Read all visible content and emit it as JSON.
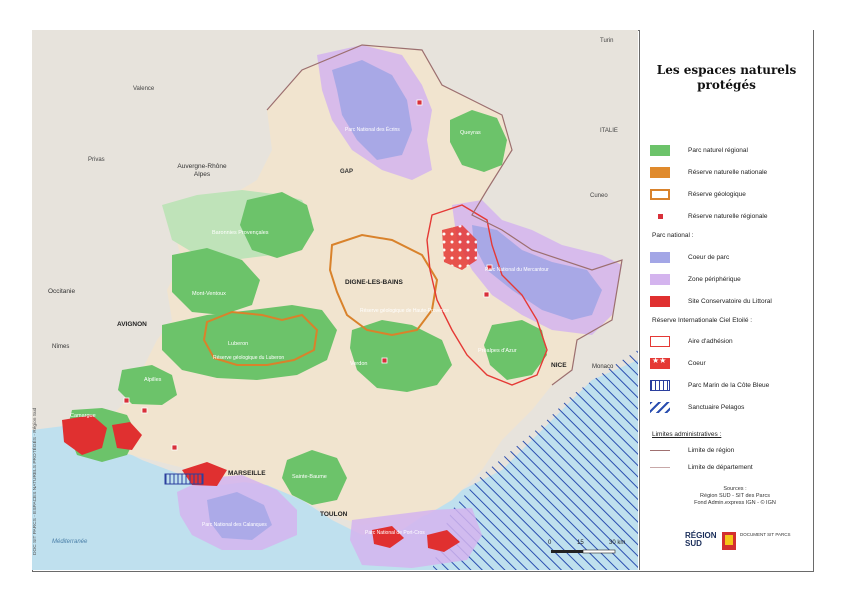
{
  "title": "Les espaces naturels protégés",
  "legend": [
    {
      "label": "Parc naturel régional",
      "type": "fill",
      "color": "#6cc36a"
    },
    {
      "label": "Réserve naturelle nationale",
      "type": "fill",
      "color": "#e08a2c"
    },
    {
      "label": "Réserve géologique",
      "type": "outline",
      "color": "#d9822b"
    },
    {
      "label": "Réserve naturelle régionale",
      "type": "point",
      "color": "#d8303a"
    }
  ],
  "legend_parc_national_heading": "Parc national :",
  "legend_parc_national": [
    {
      "label": "Coeur de parc",
      "type": "fill",
      "color": "#a3a6e6"
    },
    {
      "label": "Zone périphérique",
      "type": "fill",
      "color": "#d4b4ee"
    },
    {
      "label": "Site Conservatoire du Littoral",
      "type": "fill",
      "color": "#e03030"
    }
  ],
  "legend_reserve_ciel_heading": "Réserve Internationale Ciel Etoilé :",
  "legend_reserve_ciel": [
    {
      "label": "Aire d'adhésion",
      "type": "outline",
      "color": "#e53935"
    },
    {
      "label": "Coeur",
      "type": "stars",
      "color": "#e53935"
    },
    {
      "label": "Parc Marin de la Côte Bleue",
      "type": "hatchv",
      "color": "#2b3f9e"
    },
    {
      "label": "Sanctuaire Pelagos",
      "type": "hatchd",
      "color": "#2b3f9e"
    }
  ],
  "legend_limits_heading": "Limites administratives :",
  "legend_limits": [
    {
      "label": "Limite de région"
    },
    {
      "label": "Limite de département"
    }
  ],
  "sources": [
    "Sources :",
    "Région SUD - SIT des Parcs",
    "Fond Admin.express IGN - © IGN"
  ],
  "logos": {
    "region_line1": "RÉGION",
    "region_line2": "SUD",
    "dreal": "DOCUMENT SIT PARCS"
  },
  "scale": {
    "ticks": [
      "0",
      "15",
      "30 km"
    ]
  },
  "credit": "DOC SIT PARCS - ESPACES NATURELS PROTÉGÉS - Région Sud",
  "map": {
    "cities": [
      {
        "name": "Turin"
      },
      {
        "name": "Valence"
      },
      {
        "name": "Privas"
      },
      {
        "name": "ITALIE"
      },
      {
        "name": "Auvergne-Rhône Alpes"
      },
      {
        "name": "GAP"
      },
      {
        "name": "Cuneo"
      },
      {
        "name": "Occitanie"
      },
      {
        "name": "DIGNE-LES-BAINS"
      },
      {
        "name": "AVIGNON"
      },
      {
        "name": "Nîmes"
      },
      {
        "name": "NICE"
      },
      {
        "name": "Monaco"
      },
      {
        "name": "MARSEILLE"
      },
      {
        "name": "TOULON"
      },
      {
        "name": "Méditerranée"
      }
    ],
    "parks": [
      "Queyras",
      "Baronnies Provençales",
      "Mont-Ventoux",
      "Luberon",
      "Verdon",
      "Préalpes d'Azur",
      "Alpilles",
      "Camargue",
      "Sainte-Baume"
    ],
    "reserves": [
      "Parc National des Écrins",
      "Parc National du Mercantour",
      "Parc National des Calanques",
      "Parc National de Port-Cros",
      "Réserve géologique du Luberon",
      "Réserve géologique de Haute-Provence"
    ]
  }
}
